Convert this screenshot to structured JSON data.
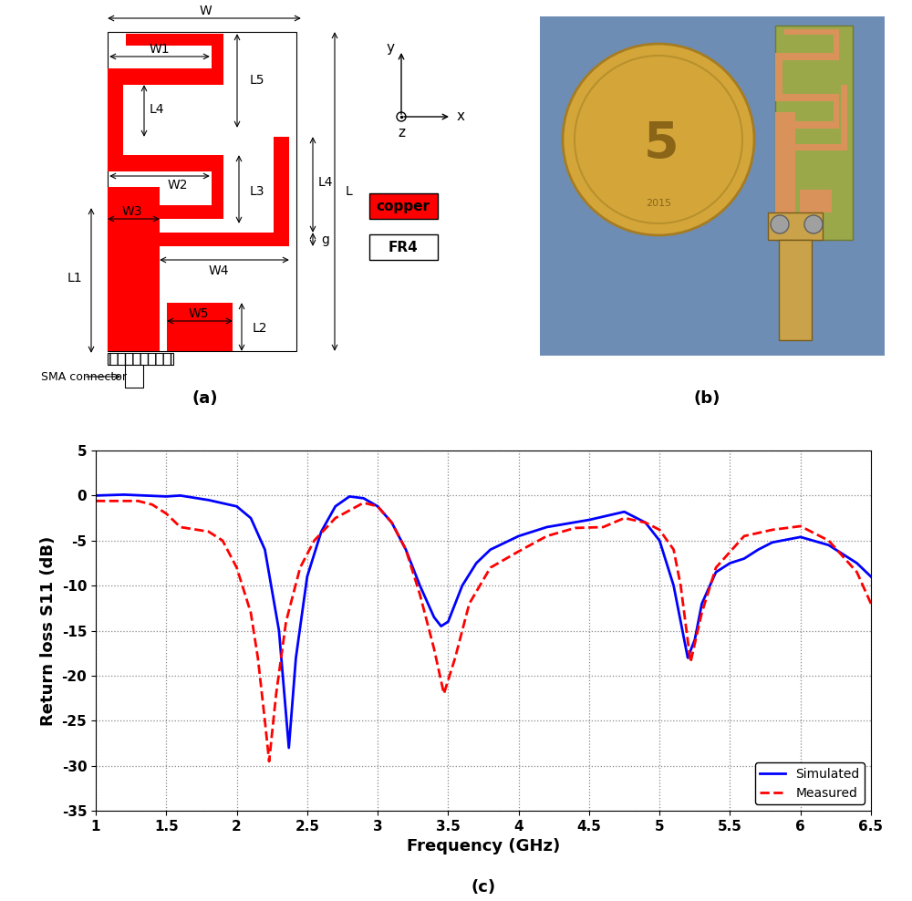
{
  "panel_labels": [
    "(a)",
    "(b)",
    "(c)"
  ],
  "diagram": {
    "dimension_labels": [
      "W",
      "W1",
      "L5",
      "L4",
      "W2",
      "L3",
      "W3",
      "L1",
      "W4",
      "L4",
      "g",
      "L",
      "L2",
      "W5"
    ],
    "connector_label": "SMA connector",
    "axis_labels": [
      "y",
      "x",
      "z"
    ],
    "legend": [
      {
        "label": "copper",
        "color": "#ff0000"
      },
      {
        "label": "FR4",
        "color": "#ffffff"
      }
    ]
  },
  "photo": {
    "coin_text": [
      "5",
      "2015"
    ]
  },
  "chart_data": {
    "type": "line",
    "xlabel": "Frequency (GHz)",
    "ylabel": "Return loss S11 (dB)",
    "xlim": [
      1,
      6.5
    ],
    "xticks": [
      1,
      1.5,
      2,
      2.5,
      3,
      3.5,
      4,
      4.5,
      5,
      5.5,
      6,
      6.5
    ],
    "ylim": [
      -35,
      5
    ],
    "yticks": [
      -35,
      -30,
      -25,
      -20,
      -15,
      -10,
      -5,
      0,
      5
    ],
    "grid": true,
    "legend": "lower right",
    "series": [
      {
        "name": "Simulated",
        "color": "#0000ff",
        "line_style": "solid",
        "x": [
          1.0,
          1.2,
          1.5,
          1.6,
          1.8,
          2.0,
          2.1,
          2.2,
          2.3,
          2.37,
          2.42,
          2.5,
          2.6,
          2.7,
          2.8,
          2.9,
          3.0,
          3.1,
          3.2,
          3.3,
          3.4,
          3.45,
          3.5,
          3.6,
          3.7,
          3.8,
          4.0,
          4.2,
          4.5,
          4.75,
          4.9,
          5.0,
          5.1,
          5.2,
          5.25,
          5.3,
          5.4,
          5.5,
          5.6,
          5.7,
          5.8,
          6.0,
          6.2,
          6.4,
          6.5
        ],
        "values": [
          0,
          0.1,
          -0.1,
          0,
          -0.5,
          -1.2,
          -2.5,
          -6,
          -15,
          -28,
          -18,
          -9,
          -4,
          -1.2,
          -0.1,
          -0.3,
          -1.2,
          -3,
          -6,
          -10,
          -13.5,
          -14.5,
          -14,
          -10,
          -7.5,
          -6,
          -4.5,
          -3.5,
          -2.7,
          -1.8,
          -3,
          -5,
          -10,
          -18,
          -16,
          -12,
          -8.5,
          -7.5,
          -7,
          -6,
          -5.2,
          -4.6,
          -5.5,
          -7.5,
          -9
        ]
      },
      {
        "name": "Measured",
        "color": "#ff0000",
        "line_style": "dashed",
        "x": [
          1.0,
          1.3,
          1.4,
          1.5,
          1.6,
          1.8,
          1.9,
          2.0,
          2.1,
          2.15,
          2.2,
          2.23,
          2.28,
          2.35,
          2.45,
          2.55,
          2.7,
          2.9,
          3.0,
          3.1,
          3.2,
          3.3,
          3.4,
          3.47,
          3.55,
          3.65,
          3.8,
          4.0,
          4.2,
          4.4,
          4.6,
          4.75,
          4.9,
          5.0,
          5.1,
          5.15,
          5.22,
          5.3,
          5.4,
          5.6,
          5.8,
          6.0,
          6.2,
          6.4,
          6.5
        ],
        "values": [
          -0.6,
          -0.6,
          -1,
          -2,
          -3.5,
          -4,
          -5,
          -8,
          -13,
          -18,
          -25,
          -29.5,
          -22,
          -14,
          -8,
          -5,
          -2.5,
          -0.8,
          -1.2,
          -3,
          -6,
          -11,
          -17,
          -22,
          -18,
          -12,
          -8,
          -6.2,
          -4.5,
          -3.6,
          -3.5,
          -2.5,
          -3,
          -3.8,
          -6,
          -10,
          -18.5,
          -13,
          -8,
          -4.5,
          -3.8,
          -3.4,
          -5,
          -8.5,
          -12
        ]
      }
    ]
  }
}
